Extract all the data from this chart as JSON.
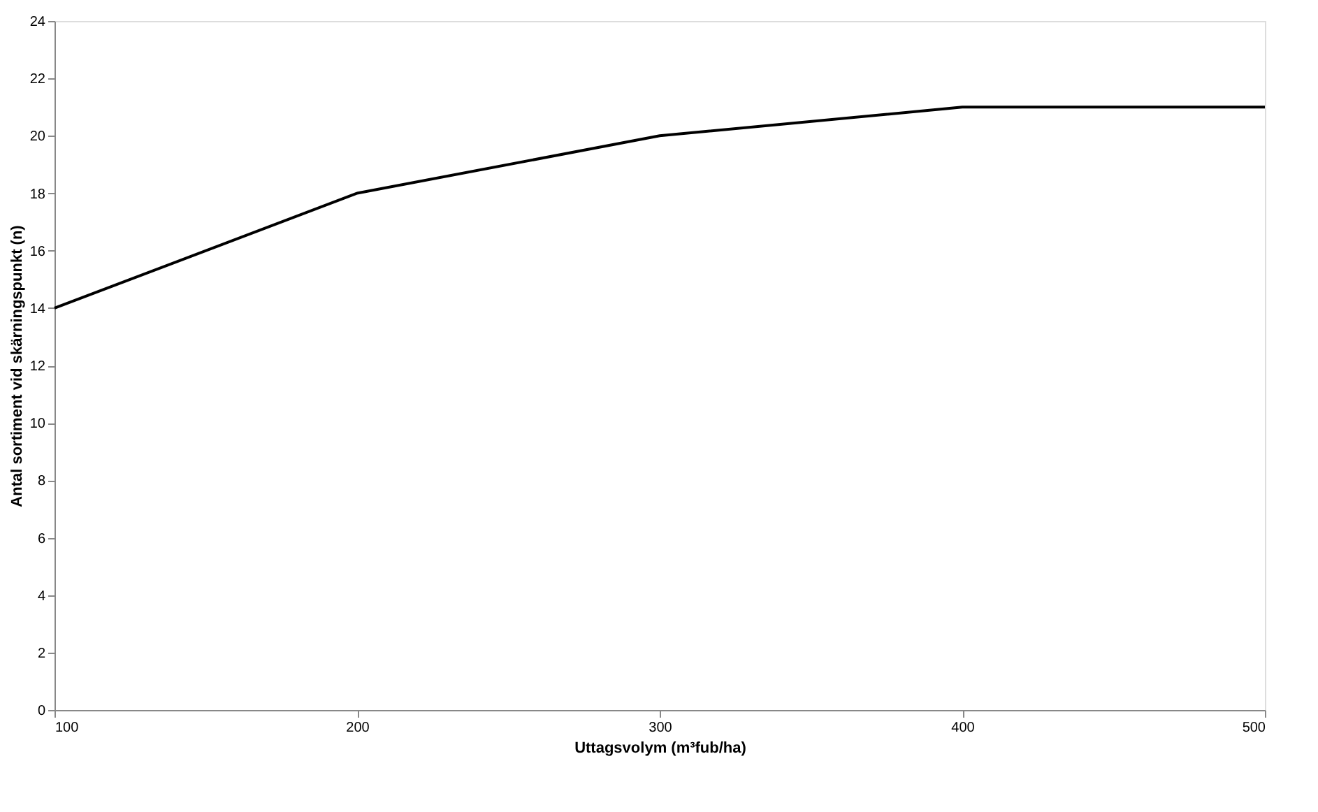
{
  "chart_data": {
    "type": "line",
    "x": [
      100,
      200,
      300,
      400,
      500
    ],
    "series": [
      {
        "color": "#000000",
        "values": [
          14,
          18,
          20,
          21,
          21
        ]
      }
    ],
    "xlabel": "Uttagsvolym (m³fub/ha)",
    "ylabel": "Antal sortiment vid skärningspunkt (n)",
    "xlim": [
      100,
      500
    ],
    "xticks": [
      100,
      200,
      300,
      400,
      500
    ],
    "ylim": [
      0,
      24
    ],
    "yticks": [
      0,
      2,
      4,
      6,
      8,
      10,
      12,
      14,
      16,
      18,
      20,
      22,
      24
    ],
    "grid": false,
    "marker": "none",
    "line_style": "solid"
  }
}
